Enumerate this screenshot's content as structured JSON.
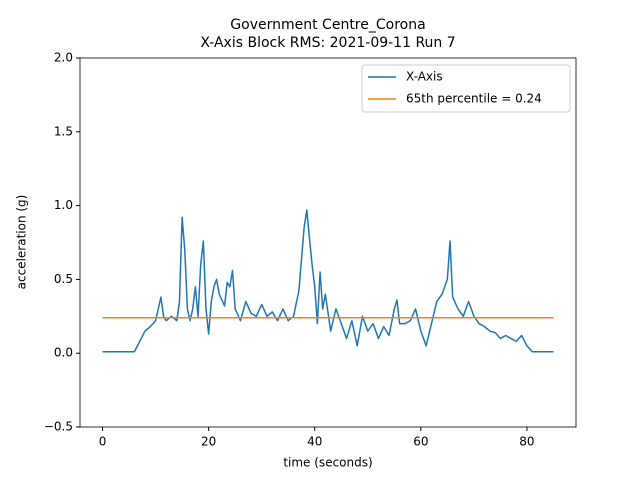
{
  "chart_data": {
    "type": "line",
    "title": "Government Centre_Corona",
    "subtitle": "X-Axis Block RMS: 2021-09-11 Run 7",
    "xlabel": "time (seconds)",
    "ylabel": "acceleration (g)",
    "xlim": [
      -4.25,
      89.25
    ],
    "ylim": [
      -0.5,
      2.0
    ],
    "xticks": [
      0,
      20,
      40,
      60,
      80
    ],
    "yticks": [
      {
        "value": -0.5,
        "label": "−0.5"
      },
      {
        "value": 0,
        "label": "0.0"
      },
      0.5,
      {
        "value": 1,
        "label": "1.0"
      },
      1.5,
      {
        "value": 2,
        "label": "2.0"
      }
    ],
    "legend": "upper right",
    "series": [
      {
        "name": "X-Axis",
        "color": "#1f77b4",
        "x": [
          0,
          6,
          7,
          8,
          9,
          10,
          10.5,
          11,
          11.5,
          12,
          13,
          14,
          14.5,
          15,
          15.5,
          16,
          16.5,
          17,
          17.5,
          18,
          18.5,
          19,
          19.5,
          20,
          20.5,
          21,
          21.5,
          22,
          23,
          23.5,
          24,
          24.5,
          25,
          26,
          27,
          28,
          29,
          30,
          31,
          32,
          33,
          34,
          35,
          36,
          37,
          38,
          38.5,
          39,
          39.5,
          40,
          40.5,
          41,
          41.5,
          42,
          43,
          44,
          45,
          46,
          47,
          48,
          49,
          50,
          51,
          52,
          53,
          54,
          55,
          55.5,
          56,
          57,
          58,
          59,
          60,
          61,
          62,
          63,
          64,
          65,
          65.5,
          66,
          67,
          68,
          69,
          70,
          71,
          72,
          73,
          74,
          75,
          76,
          77,
          78,
          79,
          80,
          81,
          85
        ],
        "values": [
          0.01,
          0.01,
          0.08,
          0.15,
          0.18,
          0.22,
          0.3,
          0.38,
          0.25,
          0.22,
          0.25,
          0.22,
          0.35,
          0.92,
          0.7,
          0.3,
          0.22,
          0.3,
          0.45,
          0.25,
          0.6,
          0.76,
          0.3,
          0.13,
          0.35,
          0.45,
          0.5,
          0.4,
          0.32,
          0.48,
          0.45,
          0.56,
          0.3,
          0.22,
          0.35,
          0.27,
          0.25,
          0.33,
          0.25,
          0.28,
          0.22,
          0.3,
          0.22,
          0.25,
          0.42,
          0.85,
          0.97,
          0.78,
          0.6,
          0.45,
          0.2,
          0.55,
          0.3,
          0.4,
          0.15,
          0.3,
          0.2,
          0.1,
          0.22,
          0.05,
          0.25,
          0.15,
          0.2,
          0.1,
          0.18,
          0.12,
          0.3,
          0.36,
          0.2,
          0.2,
          0.22,
          0.3,
          0.15,
          0.05,
          0.2,
          0.35,
          0.4,
          0.5,
          0.76,
          0.38,
          0.3,
          0.25,
          0.35,
          0.25,
          0.2,
          0.18,
          0.15,
          0.14,
          0.1,
          0.12,
          0.1,
          0.08,
          0.12,
          0.05,
          0.01,
          0.01
        ]
      },
      {
        "name": "65th percentile = 0.24",
        "color": "#ff7f0e",
        "x": [
          0,
          85
        ],
        "values": [
          0.24,
          0.24
        ]
      }
    ]
  }
}
